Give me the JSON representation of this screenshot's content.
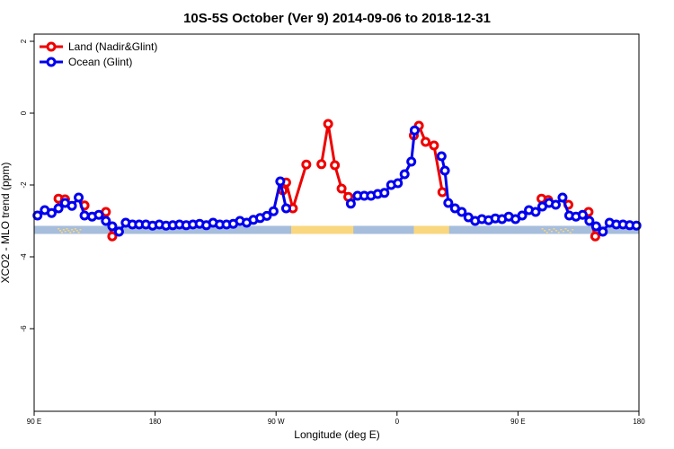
{
  "chart_data": {
    "type": "line",
    "title": "10S-5S October (Ver 9)   2014-09-06 to 2018-12-31",
    "xlabel": "Longitude (deg E)",
    "ylabel": "XCO2 - MLO trend (ppm)",
    "xlim": [
      0,
      360
    ],
    "ylim": [
      -8.3,
      2.2
    ],
    "x_ticks": [
      {
        "value": 0,
        "label": "90 E"
      },
      {
        "value": 72,
        "label": "180"
      },
      {
        "value": 144,
        "label": "90 W"
      },
      {
        "value": 216,
        "label": "0"
      },
      {
        "value": 288,
        "label": "90 E"
      },
      {
        "value": 360,
        "label": "180"
      }
    ],
    "y_ticks": [
      {
        "value": 2,
        "label": "2"
      },
      {
        "value": 0,
        "label": "0"
      },
      {
        "value": -2,
        "label": "-2"
      },
      {
        "value": -4,
        "label": "-4"
      },
      {
        "value": -6,
        "label": "-6"
      }
    ],
    "grid": false,
    "legend_position": "top-left",
    "land_band": {
      "y": -3.25,
      "ocean_color": "#a6bddb",
      "land_color": "#f9d77e",
      "land_ranges": [
        [
          153,
          190
        ],
        [
          226,
          247
        ]
      ],
      "island_ranges": [
        [
          14,
          27
        ],
        [
          302,
          320
        ]
      ]
    },
    "series": [
      {
        "name": "Land (Nadir&Glint)",
        "color": "#ee0000",
        "points": [
          [
            14.5,
            -2.38
          ],
          [
            18.4,
            -2.4
          ],
          [
            30,
            -2.57
          ],
          [
            42.7,
            -2.75
          ],
          [
            46.5,
            -3.43
          ],
          [
            148,
            -2.15
          ],
          [
            150,
            -1.93
          ],
          [
            154,
            -2.65
          ],
          [
            162,
            -1.43
          ],
          [
            171,
            -1.42
          ],
          [
            175,
            -0.3
          ],
          [
            179,
            -1.45
          ],
          [
            183,
            -2.1
          ],
          [
            187,
            -2.33
          ],
          [
            226,
            -0.62
          ],
          [
            229,
            -0.35
          ],
          [
            233,
            -0.8
          ],
          [
            238,
            -0.9
          ],
          [
            243,
            -2.2
          ],
          [
            302,
            -2.38
          ],
          [
            306,
            -2.42
          ],
          [
            318,
            -2.55
          ],
          [
            330,
            -2.75
          ],
          [
            334,
            -3.43
          ]
        ]
      },
      {
        "name": "Ocean (Glint)",
        "color": "#0000ee",
        "points": [
          [
            2,
            -2.85
          ],
          [
            6.3,
            -2.7
          ],
          [
            10.4,
            -2.78
          ],
          [
            14.5,
            -2.65
          ],
          [
            18.4,
            -2.5
          ],
          [
            22.5,
            -2.58
          ],
          [
            26.5,
            -2.35
          ],
          [
            30,
            -2.85
          ],
          [
            34.5,
            -2.88
          ],
          [
            38.5,
            -2.83
          ],
          [
            42.7,
            -3.0
          ],
          [
            46.5,
            -3.15
          ],
          [
            50.5,
            -3.3
          ],
          [
            54.5,
            -3.05
          ],
          [
            58.5,
            -3.1
          ],
          [
            62.5,
            -3.1
          ],
          [
            66.5,
            -3.1
          ],
          [
            70.5,
            -3.13
          ],
          [
            74.5,
            -3.1
          ],
          [
            78.5,
            -3.13
          ],
          [
            82.5,
            -3.12
          ],
          [
            86.5,
            -3.1
          ],
          [
            90.5,
            -3.12
          ],
          [
            94.5,
            -3.1
          ],
          [
            98.5,
            -3.08
          ],
          [
            102.5,
            -3.12
          ],
          [
            106.5,
            -3.05
          ],
          [
            110.5,
            -3.1
          ],
          [
            114.5,
            -3.1
          ],
          [
            118.5,
            -3.08
          ],
          [
            122.5,
            -3.0
          ],
          [
            126.5,
            -3.05
          ],
          [
            130.5,
            -2.97
          ],
          [
            134.5,
            -2.92
          ],
          [
            138.5,
            -2.86
          ],
          [
            142.5,
            -2.73
          ],
          [
            146.5,
            -1.9
          ],
          [
            150,
            -2.65
          ],
          [
            188.5,
            -2.52
          ],
          [
            192.5,
            -2.3
          ],
          [
            196.5,
            -2.3
          ],
          [
            200.5,
            -2.3
          ],
          [
            204.5,
            -2.25
          ],
          [
            208.5,
            -2.22
          ],
          [
            212.5,
            -2.0
          ],
          [
            216.5,
            -1.95
          ],
          [
            220.5,
            -1.7
          ],
          [
            224.5,
            -1.35
          ],
          [
            226.5,
            -0.48
          ],
          [
            242.5,
            -1.2
          ],
          [
            244.5,
            -1.6
          ],
          [
            246.5,
            -2.5
          ],
          [
            250.5,
            -2.65
          ],
          [
            254.5,
            -2.75
          ],
          [
            258.5,
            -2.9
          ],
          [
            262.5,
            -3.0
          ],
          [
            266.5,
            -2.95
          ],
          [
            270.5,
            -2.98
          ],
          [
            274.5,
            -2.93
          ],
          [
            278.5,
            -2.95
          ],
          [
            282.5,
            -2.88
          ],
          [
            286.5,
            -2.95
          ],
          [
            290.5,
            -2.85
          ],
          [
            294.5,
            -2.7
          ],
          [
            298.5,
            -2.75
          ],
          [
            302.5,
            -2.6
          ],
          [
            306.5,
            -2.5
          ],
          [
            310.5,
            -2.55
          ],
          [
            314.5,
            -2.35
          ],
          [
            318.5,
            -2.85
          ],
          [
            322.5,
            -2.88
          ],
          [
            326.5,
            -2.83
          ],
          [
            330.5,
            -3.0
          ],
          [
            334.5,
            -3.15
          ],
          [
            338.5,
            -3.3
          ],
          [
            342.5,
            -3.05
          ],
          [
            346.5,
            -3.1
          ],
          [
            350.5,
            -3.1
          ],
          [
            354.5,
            -3.12
          ],
          [
            358.5,
            -3.13
          ]
        ]
      }
    ]
  }
}
